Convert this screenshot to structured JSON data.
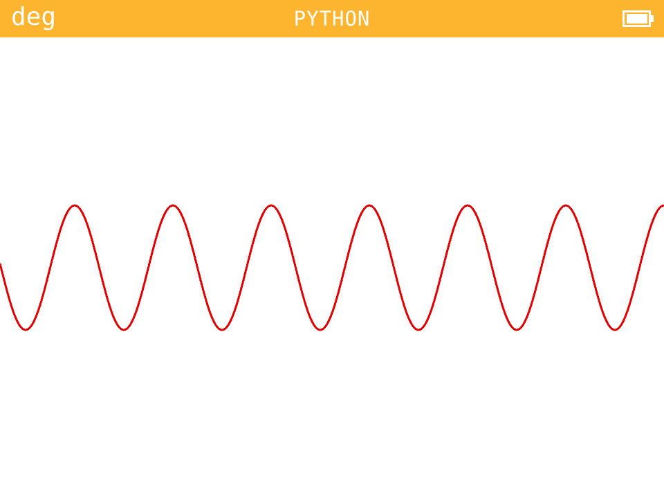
{
  "status_bar": {
    "angle_mode": "deg",
    "title": "PYTHON",
    "battery_icon": "battery-full-icon",
    "background_color": "#fdb42f",
    "text_color": "#ffffff"
  },
  "canvas": {
    "background_color": "#ffffff",
    "curve_color": "#e00000",
    "curve_icon": "sine-wave"
  }
}
